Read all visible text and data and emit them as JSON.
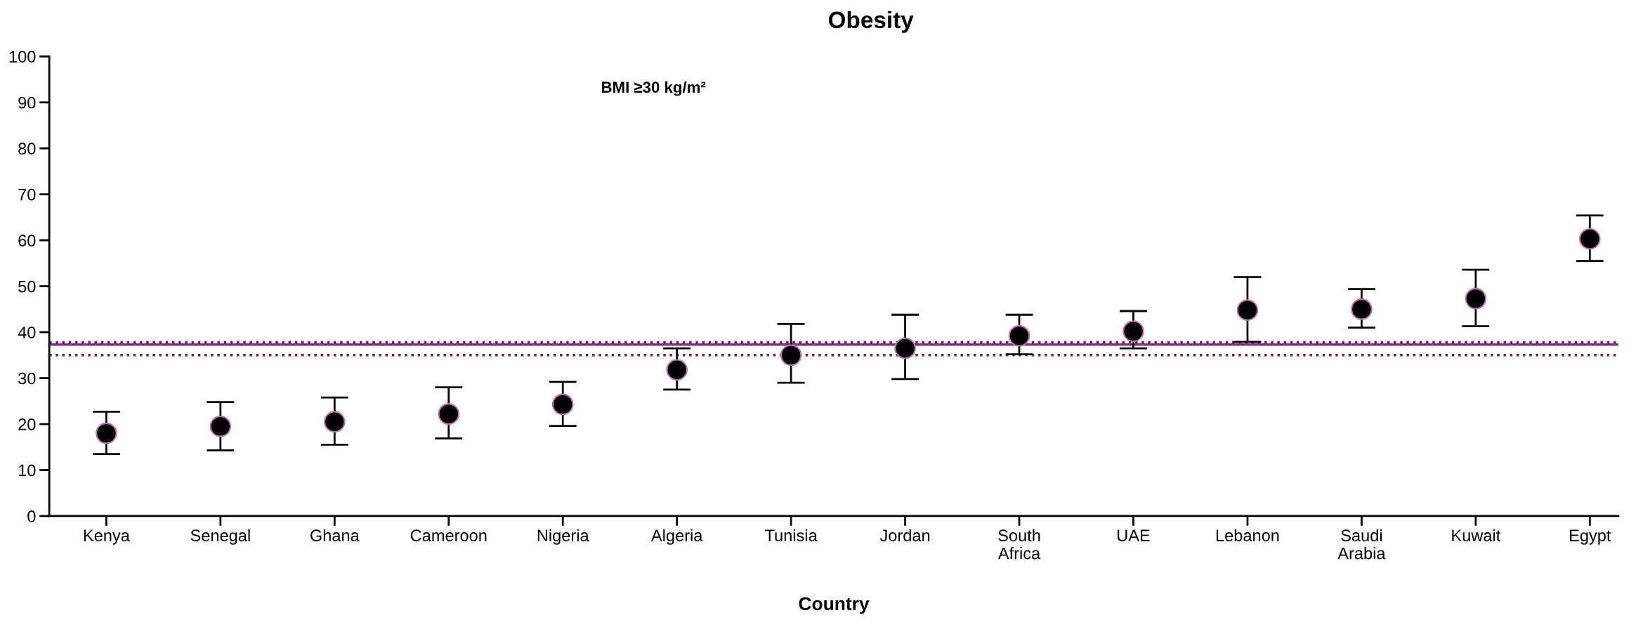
{
  "chart_data": {
    "type": "scatter",
    "title": "Obesity",
    "xlabel": "Country",
    "annotations": [
      "BMI ≥30 kg/m²"
    ],
    "categories": [
      "Kenya",
      "Senegal",
      "Ghana",
      "Cameroon",
      "Nigeria",
      "Algeria",
      "Tunisia",
      "Jordan",
      "South\nAfrica",
      "UAE",
      "Lebanon",
      "Saudi\nArabia",
      "Kuwait",
      "Egypt"
    ],
    "series": [
      {
        "color": "#000000",
        "values": [
          18,
          19.5,
          20.5,
          22.2,
          24.3,
          31.8,
          35,
          36.5,
          39.2,
          40.2,
          44.8,
          45,
          47.3,
          60.3
        ],
        "errors": [
          [
            13.5,
            22.7
          ],
          [
            14.3,
            24.8
          ],
          [
            15.5,
            25.8
          ],
          [
            16.9,
            28
          ],
          [
            19.6,
            29.2
          ],
          [
            27.5,
            36.5
          ],
          [
            29,
            41.8
          ],
          [
            29.8,
            43.8
          ],
          [
            35.2,
            43.8
          ],
          [
            36.5,
            44.6
          ],
          [
            37.9,
            52
          ],
          [
            41,
            49.4
          ],
          [
            41.3,
            53.6
          ],
          [
            55.5,
            65.4
          ]
        ]
      }
    ],
    "ref_lines": [
      {
        "axis": "y",
        "value": 37.3,
        "color": "#8a2f80",
        "line_style": "solid"
      },
      {
        "axis": "y",
        "value": 37.8,
        "color": "#6a1f5e",
        "line_style": "dotted"
      },
      {
        "axis": "y",
        "value": 35,
        "color": "#6a1f5e",
        "line_style": "dotted"
      }
    ],
    "ylim": [
      0,
      100
    ],
    "yticks": [
      0,
      10,
      20,
      30,
      40,
      50,
      60,
      70,
      80,
      90,
      100
    ],
    "marker": "circle",
    "grid": false
  }
}
